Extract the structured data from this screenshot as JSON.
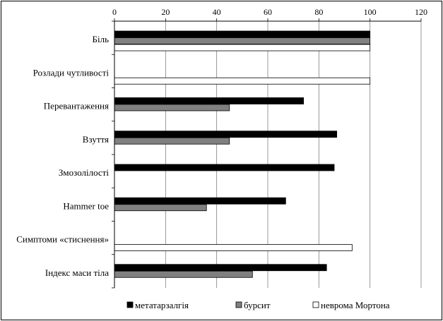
{
  "chart_data": {
    "type": "bar",
    "orientation": "horizontal",
    "categories": [
      "Біль",
      "Розлади чутливості",
      "Перевантаження",
      "Взуття",
      "Змозолілості",
      "Hammer toe",
      "Симптоми «стиснення»",
      "Індекс маси тіла"
    ],
    "series": [
      {
        "name": "метатарзалгія",
        "color": "#000000",
        "values": [
          100,
          null,
          74,
          87,
          86,
          67,
          null,
          83
        ]
      },
      {
        "name": "бурсит",
        "color": "#808080",
        "values": [
          100,
          null,
          45,
          45,
          null,
          36,
          null,
          54
        ]
      },
      {
        "name": "неврома Мортона",
        "color": "#ffffff",
        "values": [
          100,
          100,
          null,
          null,
          null,
          null,
          93,
          null
        ]
      }
    ],
    "xlim": [
      0,
      120
    ],
    "xticks": [
      "0",
      "20",
      "40",
      "60",
      "80",
      "100",
      "120"
    ],
    "x_axis_position": "top",
    "grid": "vertical",
    "legend_position": "bottom",
    "title": "",
    "xlabel": "",
    "ylabel": ""
  }
}
